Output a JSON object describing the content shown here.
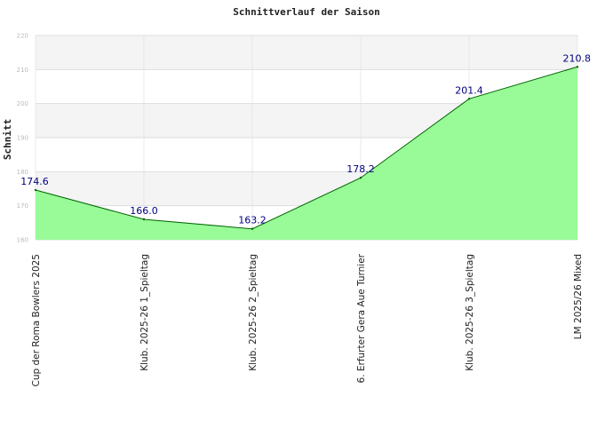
{
  "chart_data": {
    "type": "area",
    "title": "Schnittverlauf der Saison",
    "ylabel": "Schnitt",
    "xlabel": "",
    "categories": [
      "Cup der Roma Bowlers 2025",
      "Klub. 2025-26  1_Spieltag",
      "Klub. 2025-26  2_Spieltag",
      "6. Erfurter Gera Aue Turnier",
      "Klub. 2025-26  3_Spieltag",
      "LM 2025/26 Mixed"
    ],
    "values": [
      174.6,
      166.0,
      163.2,
      178.2,
      201.4,
      210.8
    ],
    "data_labels": [
      "174.6",
      "166.0",
      "163.2",
      "178.2",
      "201.4",
      "210.8"
    ],
    "ylim": [
      160,
      220
    ],
    "yticks": [
      160,
      170,
      180,
      190,
      200,
      210,
      220
    ],
    "ytick_labels": [
      "160",
      "170",
      "180",
      "190",
      "200",
      "210",
      "220"
    ],
    "grid": true,
    "colors": {
      "fill": "#98fb98",
      "line": "#006400",
      "band_light": "#f4f4f4",
      "band_dark": "#ffffff",
      "grid": "#dddddd",
      "label": "#000080"
    }
  }
}
